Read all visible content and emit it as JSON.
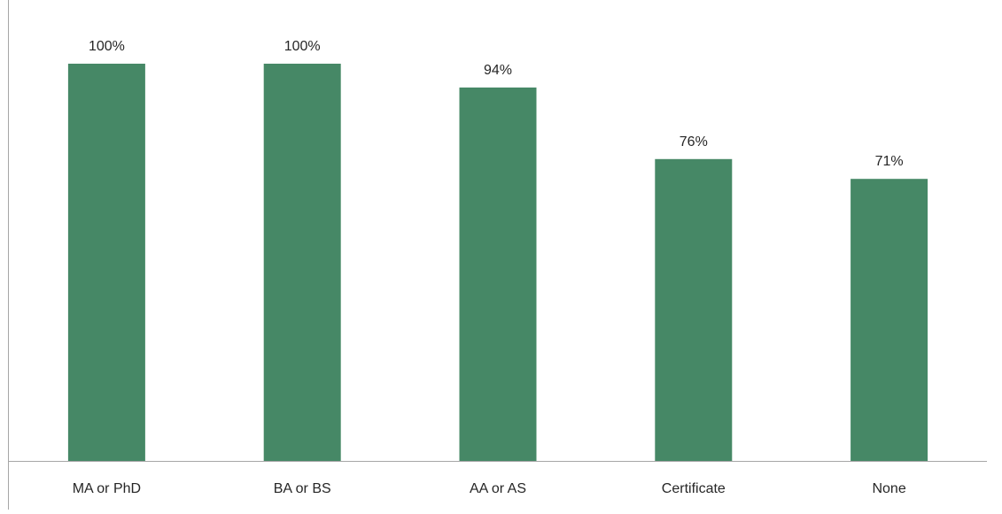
{
  "chart_data": {
    "type": "bar",
    "categories": [
      "MA or PhD",
      "BA or BS",
      "AA or AS",
      "Certificate",
      "None"
    ],
    "values": [
      100,
      100,
      94,
      76,
      71
    ],
    "value_labels": [
      "100%",
      "100%",
      "94%",
      "76%",
      "71%"
    ],
    "title": "",
    "xlabel": "",
    "ylabel": "",
    "ylim": [
      0,
      100
    ],
    "grid": false,
    "legend": "none",
    "colors": {
      "bar": "#468866",
      "axis": "#a6a6a6",
      "text": "#262626"
    }
  }
}
